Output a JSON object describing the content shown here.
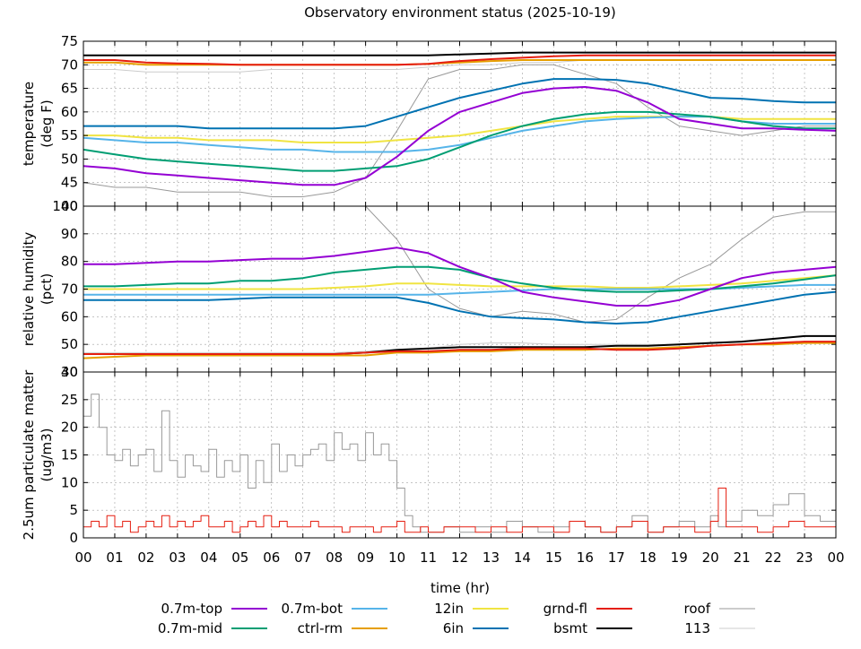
{
  "title": "Observatory environment status (2025-10-19)",
  "x_axis": {
    "label": "time (hr)",
    "range": [
      0,
      24
    ],
    "tick_labels": [
      "00",
      "01",
      "02",
      "03",
      "04",
      "05",
      "06",
      "07",
      "08",
      "09",
      "10",
      "11",
      "12",
      "13",
      "14",
      "15",
      "16",
      "17",
      "18",
      "19",
      "20",
      "21",
      "22",
      "23",
      "00"
    ]
  },
  "legend": [
    {
      "name": "0.7m-top",
      "color": "#9400d3"
    },
    {
      "name": "0.7m-bot",
      "color": "#56b4e9"
    },
    {
      "name": "12in",
      "color": "#f0e442"
    },
    {
      "name": "grnd-fl",
      "color": "#e51e10"
    },
    {
      "name": "roof",
      "color": "#999999"
    },
    {
      "name": "0.7m-mid",
      "color": "#009e73"
    },
    {
      "name": "ctrl-rm",
      "color": "#e69f00"
    },
    {
      "name": "6in",
      "color": "#0072b2"
    },
    {
      "name": "bsmt",
      "color": "#000000"
    },
    {
      "name": "113",
      "color": "#cccccc"
    }
  ],
  "chart_data": [
    {
      "type": "line",
      "title": "Observatory environment status (2025-10-19)",
      "xlabel": "time (hr)",
      "ylabel": "temperature (deg F)",
      "ylabel_lines": [
        "temperature",
        "(deg F)"
      ],
      "ylim": [
        40,
        75
      ],
      "yticks": [
        40,
        45,
        50,
        55,
        60,
        65,
        70,
        75
      ],
      "x": [
        0,
        1,
        2,
        3,
        4,
        5,
        6,
        7,
        8,
        9,
        10,
        11,
        12,
        13,
        14,
        15,
        16,
        17,
        18,
        19,
        20,
        21,
        22,
        23,
        24
      ],
      "series": [
        {
          "name": "roof",
          "color": "#999999",
          "width": 1,
          "values": [
            45,
            44,
            44,
            43,
            43,
            43,
            42,
            42,
            43,
            46,
            56,
            67,
            69,
            69,
            70,
            70,
            68,
            66,
            61,
            57,
            56,
            55,
            56,
            57,
            57
          ]
        },
        {
          "name": "113",
          "color": "#cccccc",
          "width": 1,
          "values": [
            69,
            69,
            68.5,
            68.5,
            68.5,
            68.5,
            69,
            69,
            69,
            69,
            69,
            69.5,
            70,
            70,
            70.5,
            70.5,
            71,
            71,
            71,
            71,
            71,
            71,
            71,
            71,
            71
          ]
        },
        {
          "name": "bsmt",
          "color": "#000000",
          "width": 2,
          "values": [
            72,
            72,
            72,
            72,
            72,
            72,
            72,
            72,
            72,
            72,
            72,
            72,
            72.2,
            72.4,
            72.6,
            72.6,
            72.6,
            72.6,
            72.6,
            72.6,
            72.6,
            72.6,
            72.6,
            72.6,
            72.6
          ]
        },
        {
          "name": "ctrl-rm",
          "color": "#e69f00",
          "width": 2,
          "values": [
            70.5,
            70.5,
            70,
            70,
            70,
            70,
            70,
            70,
            70,
            70,
            70,
            70.2,
            70.5,
            70.8,
            71,
            71,
            71,
            71,
            71,
            71,
            71,
            71,
            71,
            71,
            71
          ]
        },
        {
          "name": "grnd-fl",
          "color": "#e51e10",
          "width": 2,
          "values": [
            71,
            71,
            70.5,
            70.3,
            70.2,
            70,
            70,
            70,
            70,
            70,
            70,
            70.2,
            70.8,
            71.2,
            71.5,
            71.8,
            72,
            72,
            72,
            72,
            72,
            72,
            72,
            72,
            72
          ]
        },
        {
          "name": "6in",
          "color": "#0072b2",
          "width": 2,
          "values": [
            57,
            57,
            57,
            57,
            56.5,
            56.5,
            56.5,
            56.5,
            56.5,
            57,
            59,
            61,
            63,
            64.5,
            66,
            67,
            67,
            66.8,
            66,
            64.5,
            63,
            62.8,
            62.3,
            62,
            62
          ]
        },
        {
          "name": "12in",
          "color": "#f0e442",
          "width": 2,
          "values": [
            55,
            55,
            54.5,
            54.5,
            54,
            54,
            54,
            53.5,
            53.5,
            53.5,
            54,
            54.5,
            55,
            56,
            57,
            58,
            58.5,
            59,
            59,
            59,
            59,
            58.5,
            58.5,
            58.5,
            58.5
          ]
        },
        {
          "name": "0.7m-bot",
          "color": "#56b4e9",
          "width": 2,
          "values": [
            54.5,
            54,
            53.5,
            53.5,
            53,
            52.5,
            52,
            52,
            51.5,
            51.5,
            51.5,
            52,
            53,
            54.5,
            56,
            57,
            58,
            58.5,
            58.8,
            59,
            59,
            58,
            57.5,
            57.5,
            57.5
          ]
        },
        {
          "name": "0.7m-mid",
          "color": "#009e73",
          "width": 2,
          "values": [
            52,
            51,
            50,
            49.5,
            49,
            48.5,
            48,
            47.5,
            47.5,
            48,
            48.5,
            50,
            52.5,
            55,
            57,
            58.5,
            59.5,
            60,
            60,
            59.5,
            59,
            58,
            57,
            56.5,
            56.5
          ]
        },
        {
          "name": "0.7m-top",
          "color": "#9400d3",
          "width": 2,
          "values": [
            48.5,
            48,
            47,
            46.5,
            46,
            45.5,
            45,
            44.5,
            44.5,
            46,
            50.5,
            56,
            60,
            62,
            64,
            65,
            65.3,
            64.5,
            62,
            58.5,
            57.5,
            56.5,
            56.5,
            56.2,
            56
          ]
        }
      ]
    },
    {
      "type": "line",
      "ylabel": "relative humidity (pct)",
      "ylabel_lines": [
        "relative humidity",
        "(pct)"
      ],
      "ylim": [
        40,
        100
      ],
      "yticks": [
        40,
        50,
        60,
        70,
        80,
        90,
        100
      ],
      "x": [
        0,
        1,
        2,
        3,
        4,
        5,
        6,
        7,
        8,
        9,
        10,
        11,
        12,
        13,
        14,
        15,
        16,
        17,
        18,
        19,
        20,
        21,
        22,
        23,
        24
      ],
      "series": [
        {
          "name": "roof",
          "color": "#999999",
          "width": 1,
          "values": [
            100,
            100,
            100,
            100,
            100,
            100,
            100,
            100,
            100,
            100,
            88,
            70,
            63,
            60,
            62,
            61,
            58,
            59,
            67,
            74,
            79,
            88,
            96,
            98,
            98
          ]
        },
        {
          "name": "113",
          "color": "#cccccc",
          "width": 1,
          "values": [
            47,
            47,
            47,
            47,
            47,
            47,
            47,
            47,
            47,
            47.5,
            48,
            48.5,
            50,
            50.5,
            50.5,
            50,
            50,
            50,
            50,
            50,
            50.5,
            51,
            52,
            53,
            53
          ]
        },
        {
          "name": "bsmt",
          "color": "#000000",
          "width": 2,
          "values": [
            46.5,
            46.5,
            46.5,
            46.5,
            46.5,
            46.5,
            46,
            46,
            46.5,
            47,
            48,
            48.5,
            49,
            49,
            49,
            49,
            49,
            49.5,
            49.5,
            50,
            50.5,
            51,
            52,
            53,
            53
          ]
        },
        {
          "name": "ctrl-rm",
          "color": "#e69f00",
          "width": 2,
          "values": [
            45,
            45.5,
            46,
            46,
            46,
            46,
            46,
            46,
            46,
            46,
            47,
            47,
            47.5,
            47.5,
            48,
            48,
            48,
            48.5,
            48.5,
            49,
            49.5,
            50,
            50,
            50.5,
            50.5
          ]
        },
        {
          "name": "grnd-fl",
          "color": "#e51e10",
          "width": 2,
          "values": [
            46.5,
            46.5,
            46.5,
            46.5,
            46.5,
            46.5,
            46.5,
            46.5,
            46.5,
            47,
            47.5,
            47.5,
            48,
            48,
            48.5,
            48.5,
            48.5,
            48,
            48,
            48.5,
            49.5,
            50,
            50.5,
            51,
            51
          ]
        },
        {
          "name": "12in",
          "color": "#f0e442",
          "width": 2,
          "values": [
            70,
            70,
            70,
            70,
            70,
            70,
            70,
            70,
            70.5,
            71,
            72,
            72,
            71.5,
            71,
            71,
            71,
            71,
            70.5,
            70.5,
            71,
            71.5,
            72,
            73,
            74,
            75
          ]
        },
        {
          "name": "0.7m-bot",
          "color": "#56b4e9",
          "width": 2,
          "values": [
            68,
            68,
            68,
            68,
            68,
            68,
            68,
            68,
            68,
            68,
            68,
            68,
            68.5,
            69,
            69.5,
            70,
            70,
            70,
            70,
            70,
            70,
            70.5,
            71,
            71.5,
            71.5
          ]
        },
        {
          "name": "6in",
          "color": "#0072b2",
          "width": 2,
          "values": [
            66,
            66,
            66,
            66,
            66,
            66.5,
            67,
            67,
            67,
            67,
            67,
            65,
            62,
            60,
            59.5,
            59,
            58,
            57.5,
            58,
            60,
            62,
            64,
            66,
            68,
            69
          ]
        },
        {
          "name": "0.7m-mid",
          "color": "#009e73",
          "width": 2,
          "values": [
            71,
            71,
            71.5,
            72,
            72,
            73,
            73,
            74,
            76,
            77,
            78,
            78,
            77,
            74,
            72,
            70.5,
            69.5,
            69,
            69,
            69.5,
            70,
            71,
            72,
            73.5,
            75
          ]
        },
        {
          "name": "0.7m-top",
          "color": "#9400d3",
          "width": 2,
          "values": [
            79,
            79,
            79.5,
            80,
            80,
            80.5,
            81,
            81,
            82,
            83.5,
            85,
            83,
            78,
            74,
            69,
            67,
            65.5,
            64,
            64,
            66,
            70,
            74,
            76,
            77,
            78
          ]
        }
      ]
    },
    {
      "type": "line",
      "ylabel": "2.5um particulate matter (ug/m3)",
      "ylabel_lines": [
        "2.5um particulate matter",
        "(ug/m3)"
      ],
      "ylim": [
        0,
        30
      ],
      "yticks": [
        0,
        5,
        10,
        15,
        20,
        25,
        30
      ],
      "x": [
        0,
        0.25,
        0.5,
        0.75,
        1,
        1.25,
        1.5,
        1.75,
        2,
        2.25,
        2.5,
        2.75,
        3,
        3.25,
        3.5,
        3.75,
        4,
        4.25,
        4.5,
        4.75,
        5,
        5.25,
        5.5,
        5.75,
        6,
        6.25,
        6.5,
        6.75,
        7,
        7.25,
        7.5,
        7.75,
        8,
        8.25,
        8.5,
        8.75,
        9,
        9.25,
        9.5,
        9.75,
        10,
        10.25,
        10.5,
        10.75,
        11,
        11.5,
        12,
        12.5,
        13,
        13.5,
        14,
        14.5,
        15,
        15.5,
        16,
        16.5,
        17,
        17.5,
        18,
        18.5,
        19,
        19.5,
        20,
        20.25,
        20.5,
        21,
        21.5,
        22,
        22.5,
        23,
        23.5,
        24
      ],
      "series": [
        {
          "name": "roof",
          "color": "#999999",
          "width": 1,
          "values": [
            22,
            26,
            20,
            15,
            14,
            16,
            13,
            15,
            16,
            12,
            23,
            14,
            11,
            15,
            13,
            12,
            16,
            11,
            14,
            12,
            15,
            9,
            14,
            10,
            17,
            12,
            15,
            13,
            15,
            16,
            17,
            14,
            19,
            16,
            17,
            14,
            19,
            15,
            17,
            14,
            9,
            4,
            2,
            1,
            1,
            2,
            1,
            2,
            1,
            3,
            2,
            1,
            2,
            3,
            2,
            1,
            2,
            4,
            1,
            2,
            3,
            2,
            4,
            2,
            3,
            5,
            4,
            6,
            8,
            4,
            3,
            8
          ]
        },
        {
          "name": "grnd-fl",
          "color": "#e51e10",
          "width": 1,
          "values": [
            2,
            3,
            2,
            4,
            2,
            3,
            1,
            2,
            3,
            2,
            4,
            2,
            3,
            2,
            3,
            4,
            2,
            2,
            3,
            1,
            2,
            3,
            2,
            4,
            2,
            3,
            2,
            2,
            2,
            3,
            2,
            2,
            2,
            1,
            2,
            2,
            2,
            1,
            2,
            2,
            3,
            1,
            1,
            2,
            1,
            2,
            2,
            1,
            2,
            1,
            2,
            2,
            1,
            3,
            2,
            1,
            2,
            3,
            1,
            2,
            2,
            1,
            3,
            9,
            2,
            2,
            1,
            2,
            3,
            2,
            2,
            2
          ]
        }
      ]
    }
  ]
}
